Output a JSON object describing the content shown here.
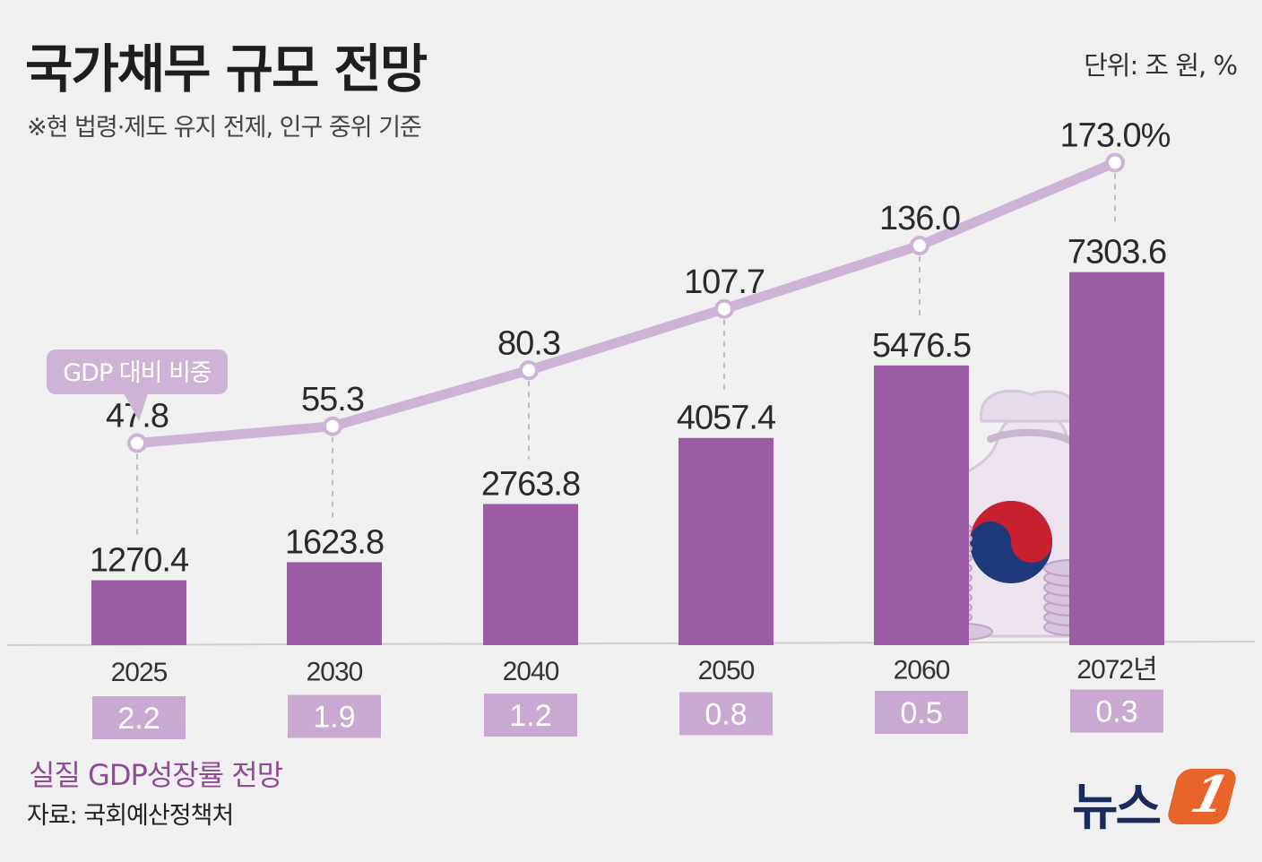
{
  "header": {
    "title": "국가채무 규모 전망",
    "subtitle": "※현 법령·제도 유지 전제, 인구 중위 기준",
    "unit": "단위: 조 원, %"
  },
  "callout": "GDP 대비 비중",
  "footer": {
    "growth_label": "실질 GDP성장률 전망",
    "source": "자료: 국회예산정책처",
    "logo_text": "뉴스",
    "logo_mark": "1"
  },
  "colors": {
    "bar": "#9b5ca3",
    "line": "#cdb4d6",
    "growth_box": "#c9a8d1",
    "background": "#f1f0f1"
  },
  "chart_data": {
    "type": "bar",
    "categories": [
      "2025",
      "2030",
      "2040",
      "2050",
      "2060",
      "2072년"
    ],
    "series": [
      {
        "type": "bar",
        "values": [
          1270.4,
          1623.8,
          2763.8,
          4057.4,
          5476.5,
          7303.6
        ],
        "labels": [
          "1270.4",
          "1623.8",
          "2763.8",
          "4057.4",
          "5476.5",
          "7303.6"
        ]
      },
      {
        "name": "GDP 대비 비중",
        "type": "line",
        "values": [
          47.8,
          55.3,
          80.3,
          107.7,
          136.0,
          173.0
        ],
        "labels": [
          "47.8",
          "55.3",
          "80.3",
          "107.7",
          "136.0",
          "173.0%"
        ]
      },
      {
        "name": "실질 GDP성장률 전망",
        "type": "table",
        "values": [
          2.2,
          1.9,
          1.2,
          0.8,
          0.5,
          0.3
        ],
        "labels": [
          "2.2",
          "1.9",
          "1.2",
          "0.8",
          "0.5",
          "0.3"
        ]
      }
    ],
    "grid": false,
    "legend": "none"
  }
}
